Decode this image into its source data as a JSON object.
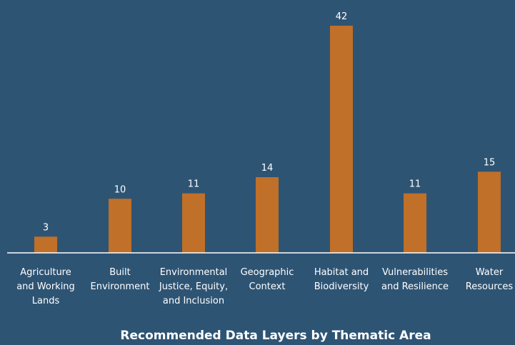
{
  "chart_data": {
    "type": "bar",
    "title": "Recommended Data Layers by Thematic Area",
    "categories": [
      [
        "Agriculture",
        "and Working",
        "Lands"
      ],
      [
        "Built",
        "Environment"
      ],
      [
        "Environmental",
        "Justice, Equity,",
        "and Inclusion"
      ],
      [
        "Geographic",
        "Context"
      ],
      [
        "Habitat and",
        "Biodiversity"
      ],
      [
        "Vulnerabilities",
        "and Resilience"
      ],
      [
        "Water",
        "Resources"
      ]
    ],
    "values": [
      3,
      10,
      11,
      14,
      42,
      11,
      15
    ],
    "ylim": [
      0,
      44
    ],
    "grid": false,
    "colors": {
      "background": "#2e5474",
      "bar": "#c07028",
      "axis": "#ffffff",
      "text": "#ffffff"
    }
  }
}
